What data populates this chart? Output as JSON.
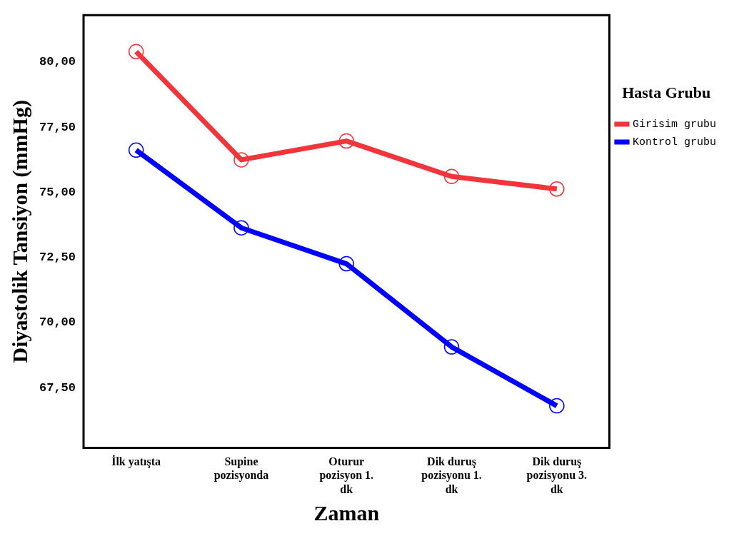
{
  "chart_data": {
    "type": "line",
    "xlabel": "Zaman",
    "ylabel": "Diyastolik Tansiyon (mmHg)",
    "legend_title": "Hasta Grubu",
    "legend": "right",
    "grid": false,
    "marker": "circle",
    "line_style": "solid",
    "categories": [
      "İlk yatışta",
      "Supine pozisyonda",
      "Oturur pozisyon 1. dk",
      "Dik duruş pozisyonu 1. dk",
      "Dik duruş pozisyonu 3. dk"
    ],
    "ylim": [
      65.2,
      81.8
    ],
    "yticks": [
      {
        "value": 67.5,
        "label": "67,50"
      },
      {
        "value": 70,
        "label": "70,00"
      },
      {
        "value": 72.5,
        "label": "72,50"
      },
      {
        "value": 75,
        "label": "75,00"
      },
      {
        "value": 77.5,
        "label": "77,50"
      },
      {
        "value": 80,
        "label": "80,00"
      }
    ],
    "series": [
      {
        "name": "Girisim grubu",
        "color": "#f0353b",
        "values": [
          80.4,
          76.25,
          76.97,
          75.61,
          75.13
        ]
      },
      {
        "name": "Kontrol grubu",
        "color": "#0000ff",
        "values": [
          76.62,
          73.64,
          72.26,
          69.07,
          66.81
        ]
      }
    ]
  }
}
